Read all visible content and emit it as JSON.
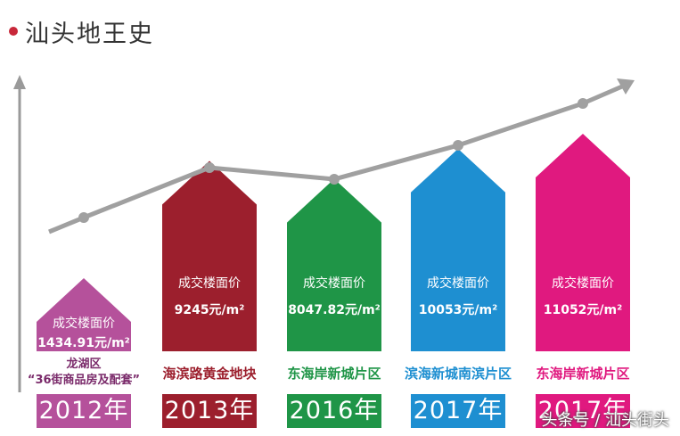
{
  "title": "汕头地王史",
  "watermark": "头条号 / 汕头街头",
  "chart_data": {
    "type": "bar",
    "categories": [
      "2012年",
      "2013年",
      "2016年",
      "2017年",
      "2017年"
    ],
    "series": [
      {
        "values": [
          1434.91,
          9245,
          8047.82,
          10053,
          11052
        ]
      }
    ],
    "price_label": "成交楼面价",
    "value_labels": [
      "1434.91元/m²",
      "9245元/m²",
      "8047.82元/m²",
      "10053元/m²",
      "11052元/m²"
    ],
    "districts": [
      [
        "龙湖区",
        "“36街商品房及配套”"
      ],
      [
        "海滨路黄金地块"
      ],
      [
        "东海岸新城片区"
      ],
      [
        "滨海新城南滨片区"
      ],
      [
        "东海岸新城片区"
      ]
    ],
    "colors": [
      "#b5519b",
      "#9c1f2d",
      "#1f9547",
      "#1e8fd1",
      "#e0197f"
    ],
    "district_colors": [
      "#7a2a6a",
      "#9c1f2d",
      "#1f9547",
      "#1e8fd1",
      "#e0197f"
    ],
    "trend_line": {
      "color": "#a0a0a0"
    }
  }
}
